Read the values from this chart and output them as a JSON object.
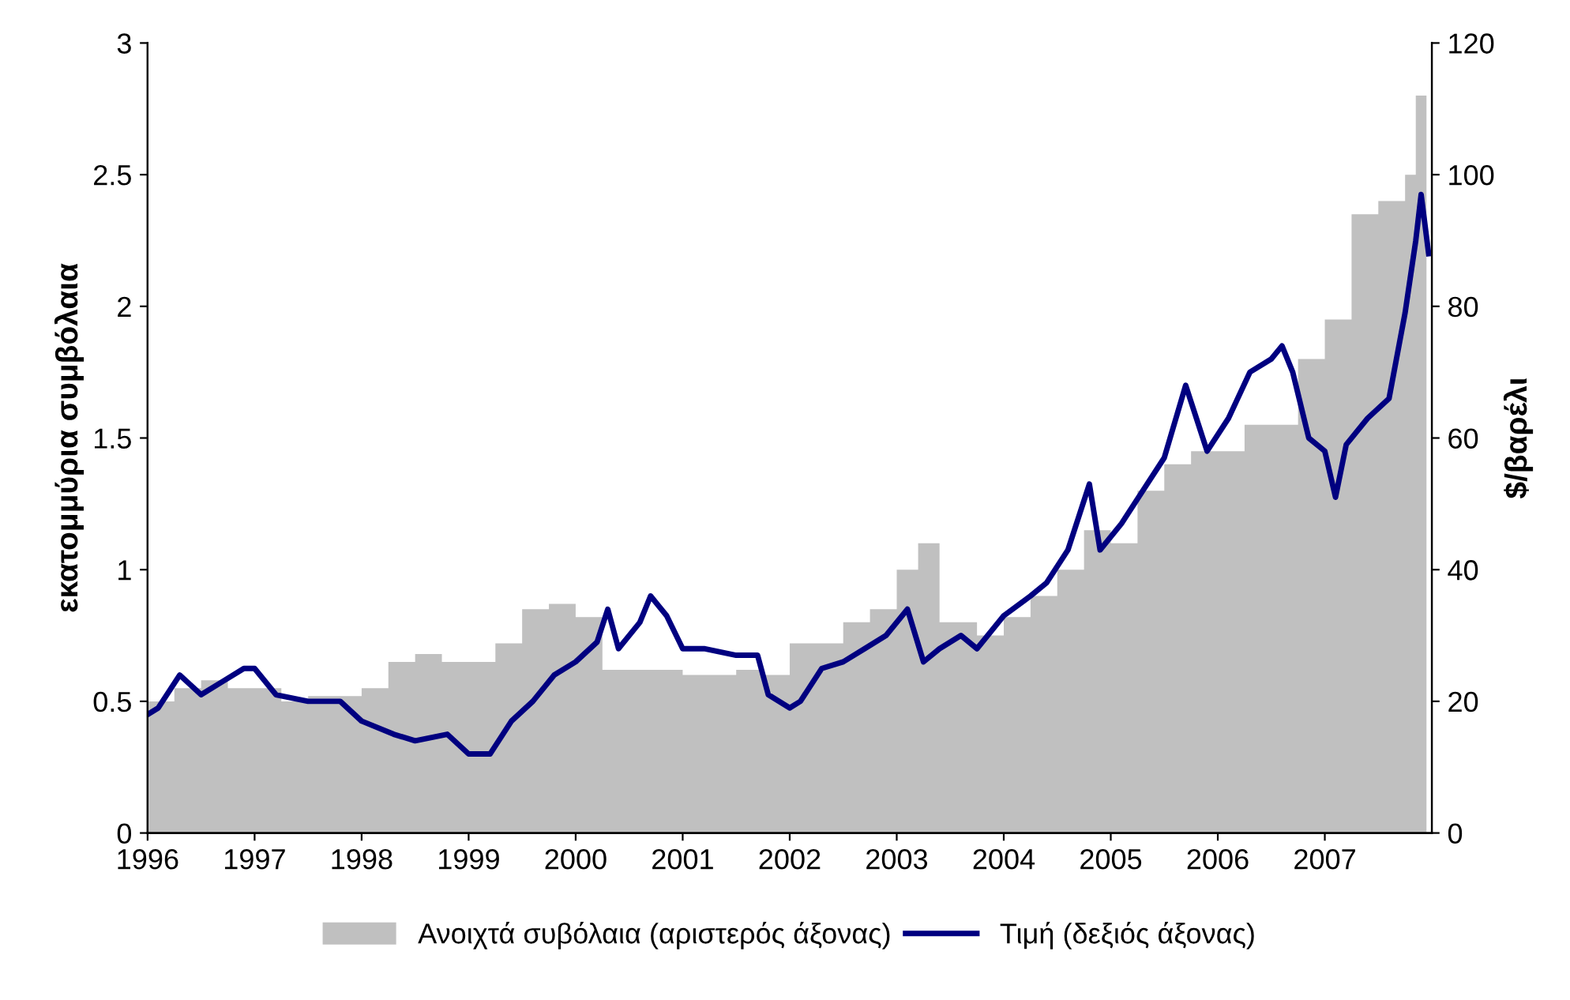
{
  "chart_data": {
    "type": "area",
    "ylabel": "εκατομμύρια συμβόλαια",
    "y2label": "$/βαρέλι",
    "xlim": [
      1996,
      2008
    ],
    "xticks": [
      1996,
      1997,
      1998,
      1999,
      2000,
      2001,
      2002,
      2003,
      2004,
      2005,
      2006,
      2007
    ],
    "ylim": [
      0,
      3
    ],
    "yticks": [
      0,
      0.5,
      1,
      1.5,
      2,
      2.5,
      3
    ],
    "y2lim": [
      0,
      120
    ],
    "y2ticks": [
      0,
      20,
      40,
      60,
      80,
      100,
      120
    ],
    "legend": "bottom",
    "grid": false,
    "series": [
      {
        "name": "Ανοιχτά συβόλαια (αριστερός άξονας)",
        "color": "#c0c0c0",
        "x": [
          1996.0,
          1996.25,
          1996.5,
          1996.75,
          1997.0,
          1997.25,
          1997.5,
          1997.75,
          1998.0,
          1998.25,
          1998.5,
          1998.75,
          1999.0,
          1999.25,
          1999.5,
          1999.75,
          2000.0,
          2000.25,
          2000.5,
          2000.75,
          2001.0,
          2001.25,
          2001.5,
          2001.75,
          2002.0,
          2002.25,
          2002.5,
          2002.75,
          2003.0,
          2003.2,
          2003.4,
          2003.75,
          2004.0,
          2004.25,
          2004.5,
          2004.75,
          2005.0,
          2005.25,
          2005.5,
          2005.75,
          2006.0,
          2006.25,
          2006.5,
          2006.75,
          2007.0,
          2007.25,
          2007.5,
          2007.75,
          2007.85,
          2007.95
        ],
        "values": [
          0.5,
          0.55,
          0.58,
          0.55,
          0.55,
          0.5,
          0.52,
          0.52,
          0.55,
          0.65,
          0.68,
          0.65,
          0.65,
          0.72,
          0.85,
          0.87,
          0.82,
          0.62,
          0.62,
          0.62,
          0.6,
          0.6,
          0.62,
          0.6,
          0.72,
          0.72,
          0.8,
          0.85,
          1.0,
          1.1,
          0.8,
          0.75,
          0.82,
          0.9,
          1.0,
          1.15,
          1.1,
          1.3,
          1.4,
          1.45,
          1.45,
          1.55,
          1.55,
          1.8,
          1.95,
          2.35,
          2.4,
          2.5,
          2.8,
          2.3
        ]
      },
      {
        "name": "Τιμή (δεξιός άξονας)",
        "type": "line",
        "axis": "y2",
        "color": "#000080",
        "x": [
          1996.0,
          1996.1,
          1996.3,
          1996.5,
          1996.7,
          1996.9,
          1997.0,
          1997.2,
          1997.5,
          1997.8,
          1998.0,
          1998.3,
          1998.5,
          1998.8,
          1999.0,
          1999.2,
          1999.4,
          1999.6,
          1999.8,
          2000.0,
          2000.2,
          2000.3,
          2000.4,
          2000.6,
          2000.7,
          2000.85,
          2001.0,
          2001.2,
          2001.5,
          2001.7,
          2001.8,
          2002.0,
          2002.1,
          2002.3,
          2002.5,
          2002.7,
          2002.9,
          2003.1,
          2003.25,
          2003.4,
          2003.6,
          2003.75,
          2004.0,
          2004.25,
          2004.4,
          2004.6,
          2004.8,
          2004.9,
          2005.1,
          2005.3,
          2005.5,
          2005.7,
          2005.9,
          2006.1,
          2006.3,
          2006.5,
          2006.6,
          2006.7,
          2006.85,
          2007.0,
          2007.1,
          2007.2,
          2007.4,
          2007.6,
          2007.75,
          2007.85,
          2007.9,
          2007.97
        ],
        "values": [
          18,
          19,
          24,
          21,
          23,
          25,
          25,
          21,
          20,
          20,
          17,
          15,
          14,
          15,
          12,
          12,
          17,
          20,
          24,
          26,
          29,
          34,
          28,
          32,
          36,
          33,
          28,
          28,
          27,
          27,
          21,
          19,
          20,
          25,
          26,
          28,
          30,
          34,
          26,
          28,
          30,
          28,
          33,
          36,
          38,
          43,
          53,
          43,
          47,
          52,
          57,
          68,
          58,
          63,
          70,
          72,
          74,
          70,
          60,
          58,
          51,
          59,
          63,
          66,
          79,
          90,
          97,
          88
        ]
      }
    ]
  }
}
